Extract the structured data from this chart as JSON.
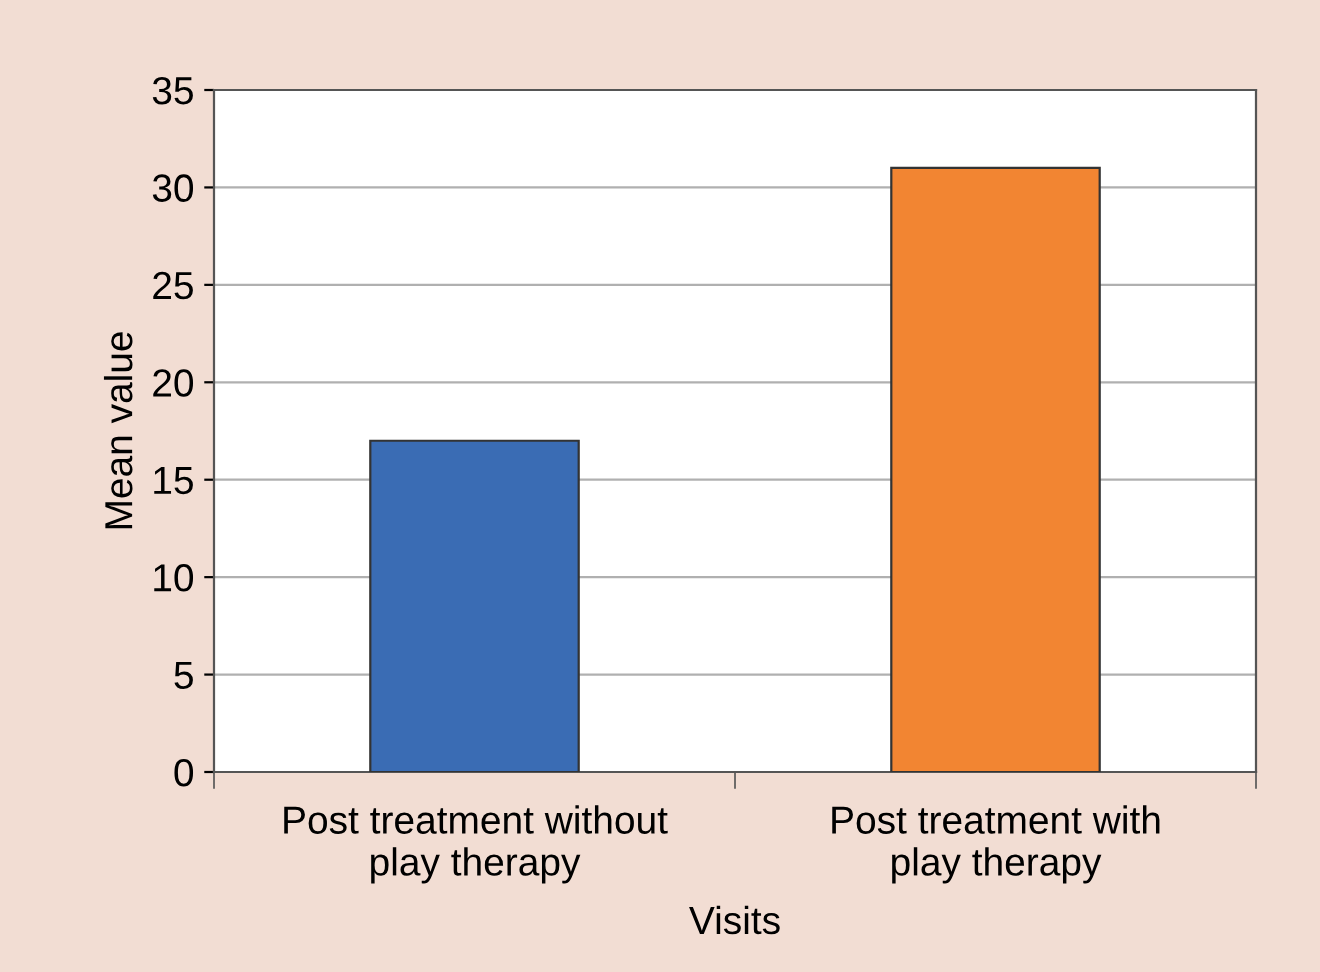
{
  "chart_data": {
    "type": "bar",
    "xlabel": "Visits",
    "ylabel": "Mean value",
    "categories": [
      "Post treatment without\nplay therapy",
      "Post treatment with\nplay therapy"
    ],
    "values": [
      17,
      31
    ],
    "colors": [
      "#3a6cb4",
      "#f28532"
    ],
    "ylim": [
      0,
      35
    ],
    "yticks": [
      0,
      5,
      10,
      15,
      20,
      25,
      30,
      35
    ],
    "grid": "y",
    "legend": false
  }
}
